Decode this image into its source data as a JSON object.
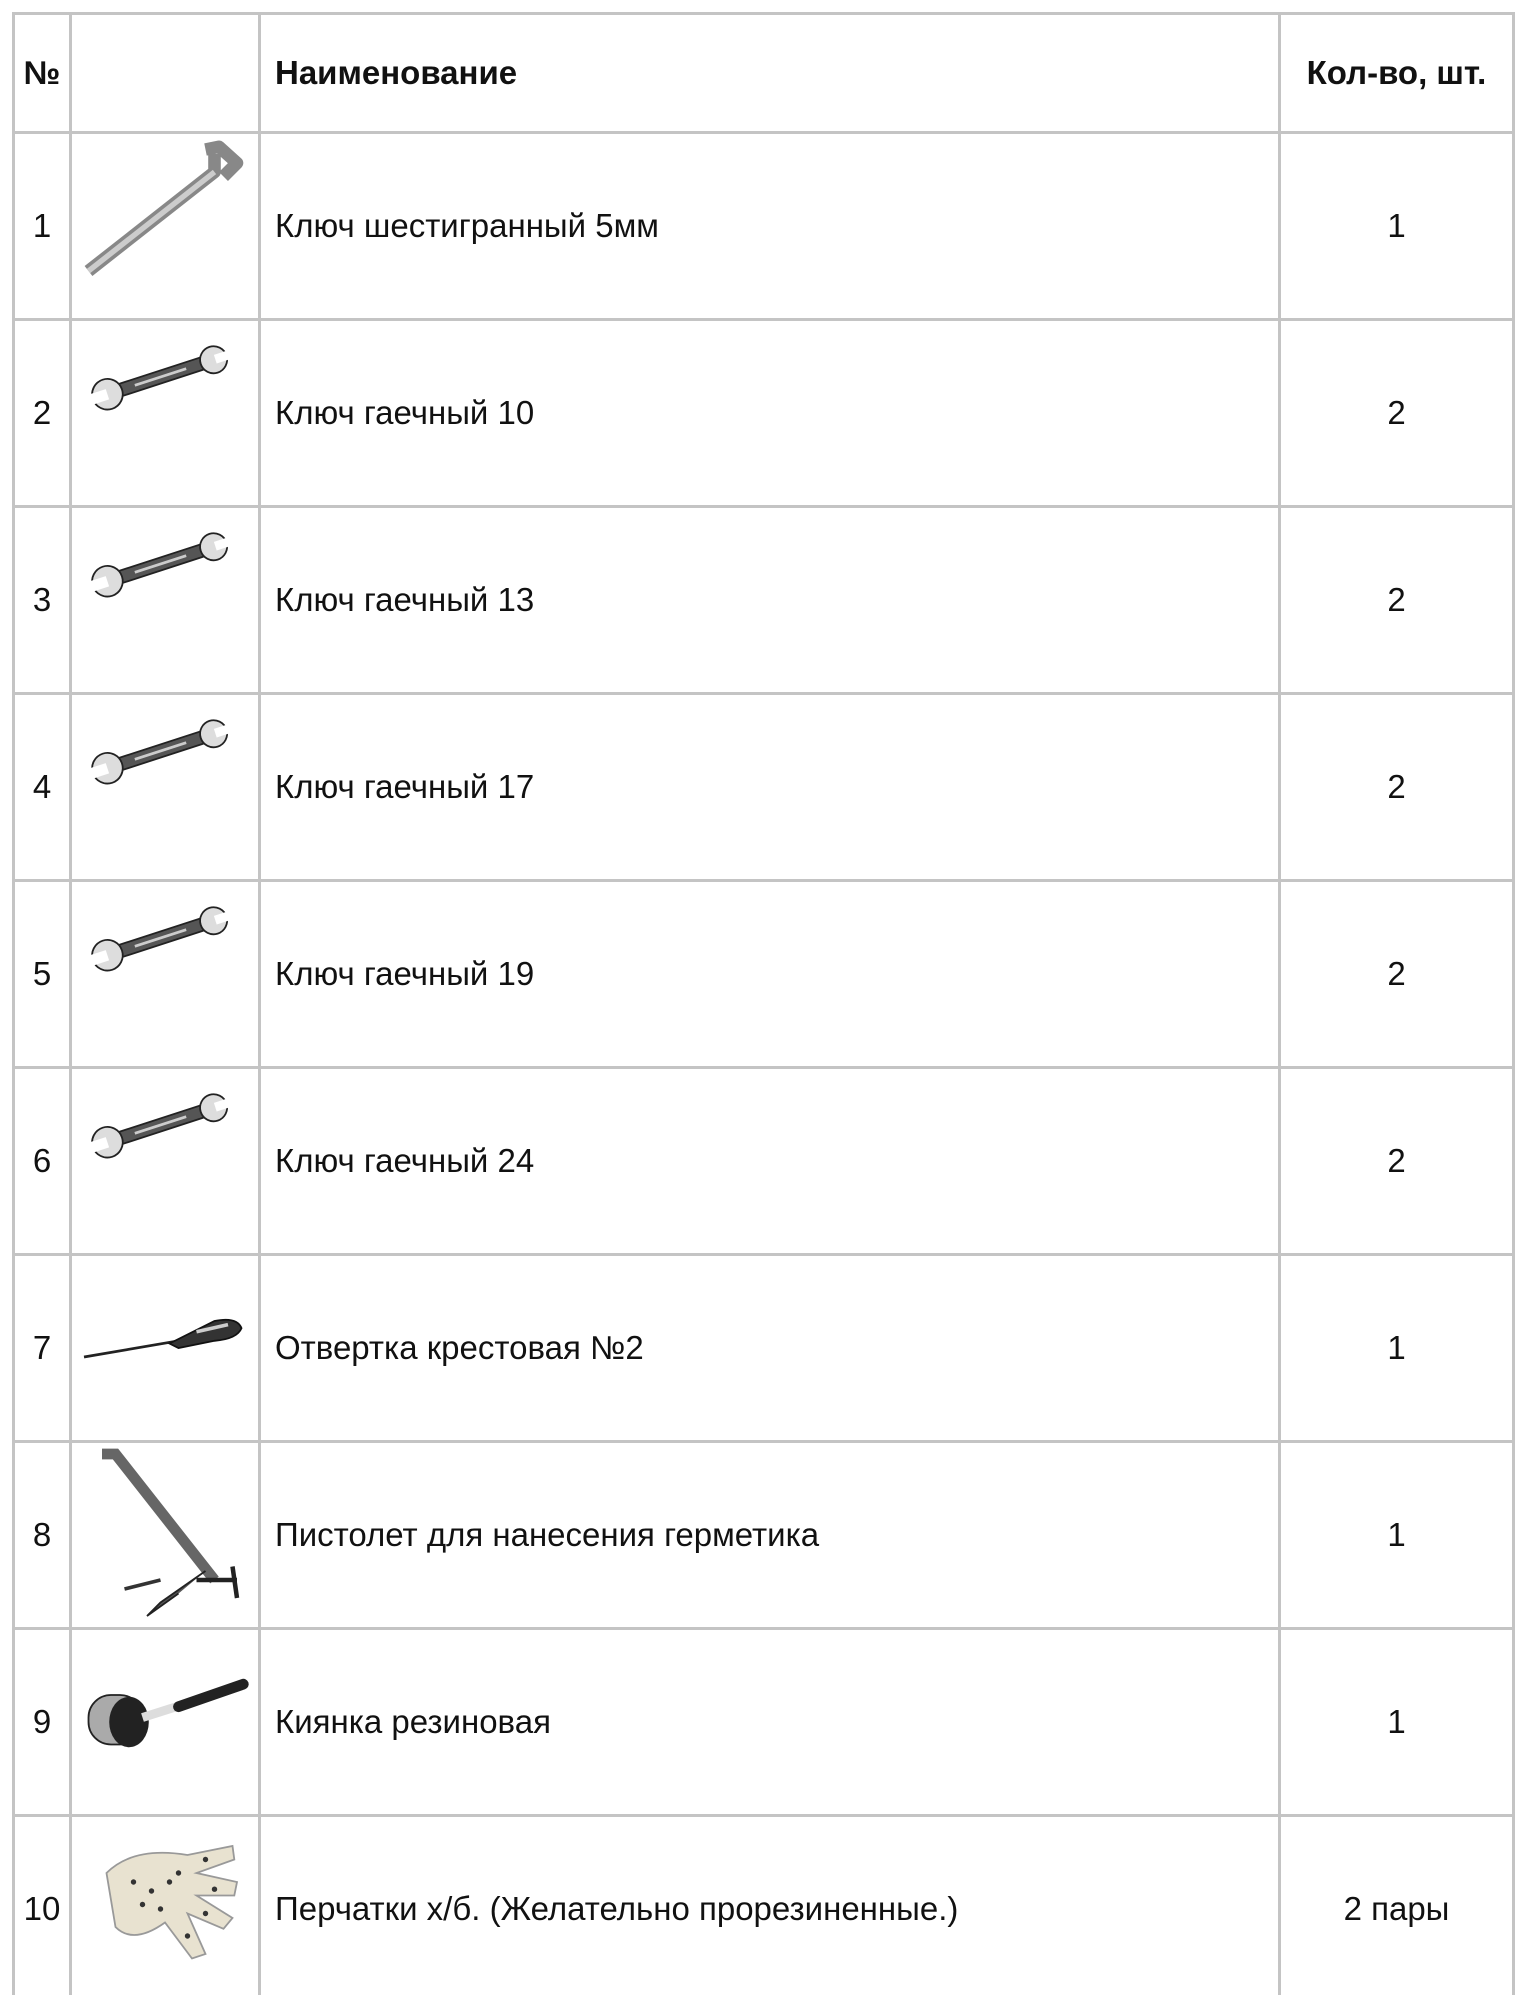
{
  "table": {
    "header": [
      "№",
      "Наименование",
      "Кол-во, шт."
    ],
    "rows": [
      [
        "1",
        "Ключ шестигранный 5мм",
        "1"
      ],
      [
        "2",
        "Ключ гаечный 10",
        "2"
      ],
      [
        "3",
        "Ключ гаечный 13",
        "2"
      ],
      [
        "4",
        "Ключ гаечный 17",
        "2"
      ],
      [
        "5",
        "Ключ гаечный 19",
        "2"
      ],
      [
        "6",
        "Ключ гаечный 24",
        "2"
      ],
      [
        "7",
        "Отвертка крестовая №2",
        "1"
      ],
      [
        "8",
        "Пистолет для нанесения герметика",
        "1"
      ],
      [
        "9",
        "Киянка резиновая",
        "1"
      ],
      [
        "10",
        "Перчатки х/б. (Желательно прорезиненные.)",
        "2 пары"
      ]
    ]
  }
}
